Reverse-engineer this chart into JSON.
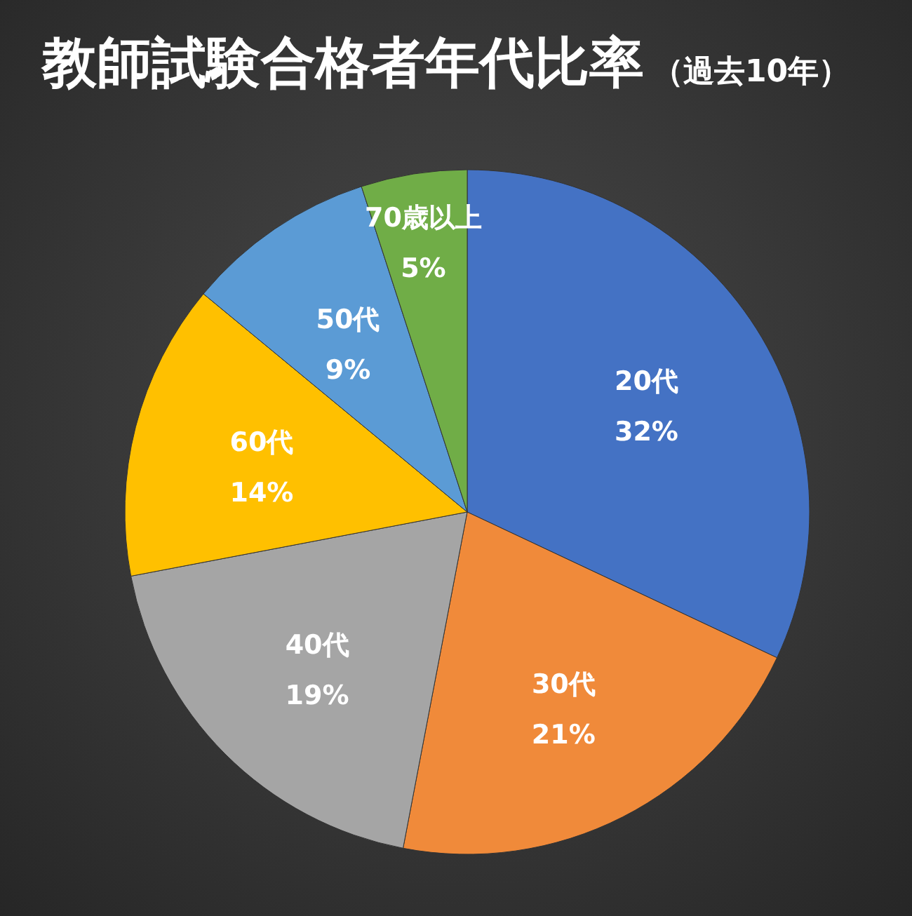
{
  "chart_data": {
    "type": "pie",
    "title": "教師試験合格者年代比率",
    "subtitle": "（過去10年）",
    "categories": [
      "20代",
      "30代",
      "40代",
      "60代",
      "50代",
      "70歳以上"
    ],
    "values": [
      32,
      21,
      19,
      14,
      9,
      5
    ],
    "colors": [
      "#4472c4",
      "#f08a3a",
      "#a5a5a5",
      "#ffc000",
      "#5b9bd5",
      "#70ad47"
    ],
    "value_labels": [
      "32%",
      "21%",
      "19%",
      "14%",
      "9%",
      "5%"
    ]
  }
}
